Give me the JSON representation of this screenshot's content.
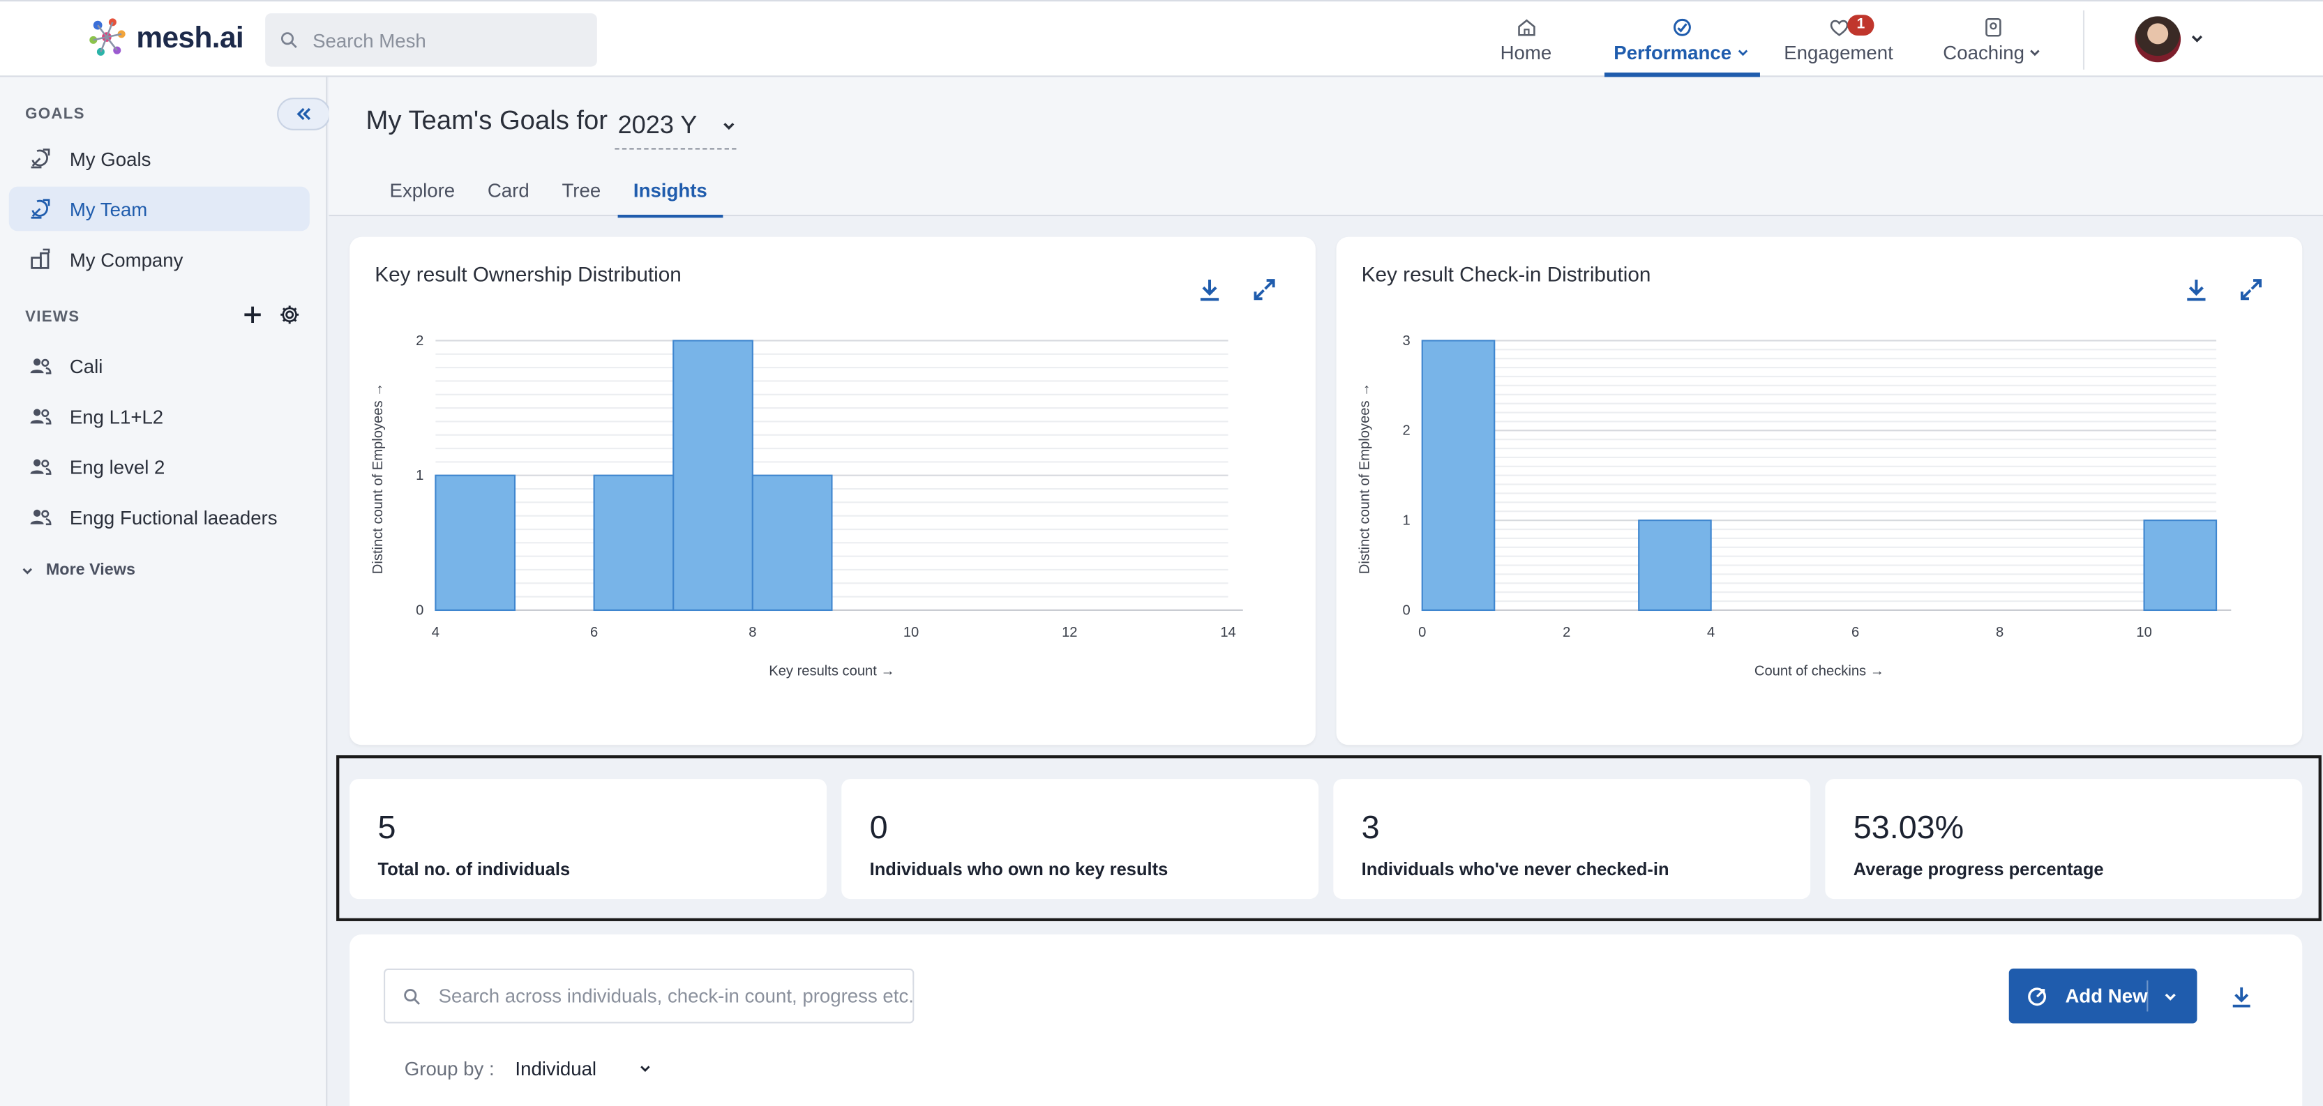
{
  "app": {
    "logo_text": "mesh.ai"
  },
  "topbar": {
    "search_placeholder": "Search Mesh",
    "nav": [
      {
        "label": "Home",
        "icon": "home-icon"
      },
      {
        "label": "Performance",
        "icon": "performance-icon",
        "active": true
      },
      {
        "label": "Engagement",
        "icon": "engagement-icon",
        "badge": "1"
      },
      {
        "label": "Coaching",
        "icon": "coaching-icon"
      }
    ]
  },
  "sidebar": {
    "goals_label": "GOALS",
    "goals": [
      {
        "label": "My Goals",
        "icon": "goal-icon"
      },
      {
        "label": "My Team",
        "icon": "team-goal-icon",
        "active": true
      },
      {
        "label": "My Company",
        "icon": "company-icon"
      }
    ],
    "views_label": "VIEWS",
    "views": [
      {
        "label": "Cali",
        "icon": "people-icon"
      },
      {
        "label": "Eng L1+L2",
        "icon": "people-icon"
      },
      {
        "label": "Eng level 2",
        "icon": "people-icon"
      },
      {
        "label": "Engg Fuctional laeaders",
        "icon": "people-icon"
      }
    ],
    "more_views": "More Views"
  },
  "page": {
    "title": "My Team's Goals for",
    "year": "2023 Y",
    "tabs": [
      "Explore",
      "Card",
      "Tree",
      "Insights"
    ],
    "active_tab": "Insights"
  },
  "chart_data": [
    {
      "type": "bar",
      "title": "Key result Ownership Distribution",
      "xlabel": "Key results count →",
      "ylabel": "Distinct count of Employees →",
      "x_ticks": [
        4,
        6,
        8,
        10,
        12,
        14
      ],
      "y_ticks": [
        0,
        1,
        2
      ],
      "xlim": [
        4,
        14
      ],
      "ylim": [
        0,
        2
      ],
      "bins": [
        {
          "x0": 4,
          "x1": 5,
          "value": 1
        },
        {
          "x0": 6,
          "x1": 7,
          "value": 1
        },
        {
          "x0": 7,
          "x1": 8,
          "value": 2
        },
        {
          "x0": 8,
          "x1": 9,
          "value": 1
        }
      ],
      "grid": true,
      "color": "#78b4e8"
    },
    {
      "type": "bar",
      "title": "Key result Check-in Distribution",
      "xlabel": "Count of checkins →",
      "ylabel": "Distinct count of Employees →",
      "x_ticks": [
        0,
        2,
        4,
        6,
        8,
        10
      ],
      "y_ticks": [
        0,
        1,
        2,
        3
      ],
      "xlim": [
        0,
        11
      ],
      "ylim": [
        0,
        3
      ],
      "bins": [
        {
          "x0": 0,
          "x1": 1,
          "value": 3
        },
        {
          "x0": 3,
          "x1": 4,
          "value": 1
        },
        {
          "x0": 10,
          "x1": 11,
          "value": 1
        }
      ],
      "grid": true,
      "color": "#78b4e8"
    }
  ],
  "stats": [
    {
      "value": "5",
      "label": "Total no. of individuals"
    },
    {
      "value": "0",
      "label": "Individuals who own no key results"
    },
    {
      "value": "3",
      "label": "Individuals who've never checked-in"
    },
    {
      "value": "53.03%",
      "label": "Average progress percentage"
    }
  ],
  "table_controls": {
    "search_placeholder": "Search across individuals, check-in count, progress etc.",
    "add_new": "Add New",
    "group_by_label": "Group by :",
    "group_by_value": "Individual"
  },
  "colors": {
    "accent": "#1f5cad",
    "bar": "#78b4e8",
    "badge": "#c0362c"
  }
}
